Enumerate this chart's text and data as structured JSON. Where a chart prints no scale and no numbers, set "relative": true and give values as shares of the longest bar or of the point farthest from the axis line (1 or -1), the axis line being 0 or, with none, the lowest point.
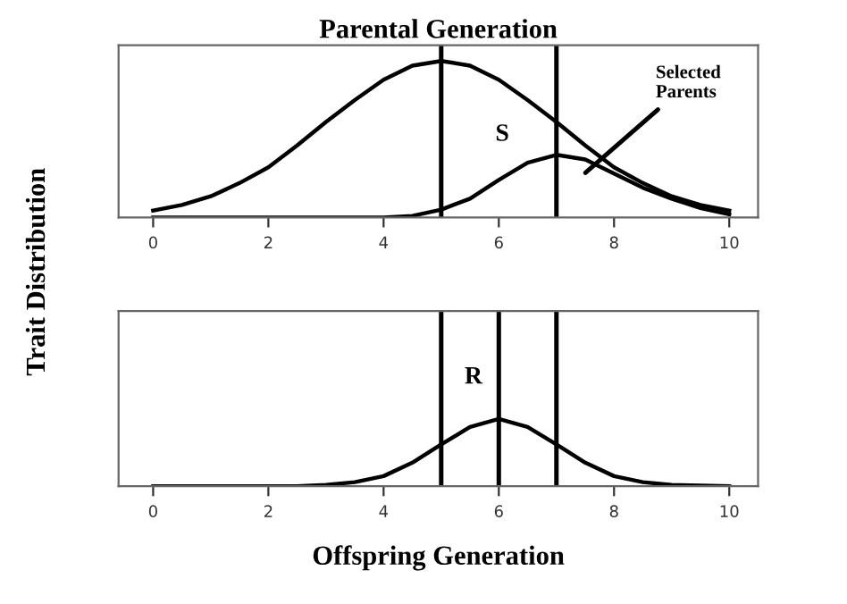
{
  "chart_data": [
    {
      "type": "line",
      "title": "Parental Generation",
      "ylabel": "Trait Distribution",
      "relative": true,
      "x": [
        0,
        0.5,
        1,
        1.5,
        2,
        2.5,
        3,
        3.5,
        4,
        4.5,
        5,
        5.5,
        6,
        6.5,
        7,
        7.5,
        8,
        8.5,
        9,
        9.5,
        10
      ],
      "series": [
        {
          "color": "#000000",
          "values": [
            0.044,
            0.08,
            0.135,
            0.22,
            0.32,
            0.46,
            0.61,
            0.75,
            0.88,
            0.97,
            1,
            0.97,
            0.88,
            0.75,
            0.61,
            0.46,
            0.32,
            0.22,
            0.135,
            0.08,
            0.044
          ]
        },
        {
          "color": "#000000",
          "values": [
            0,
            0,
            0,
            0,
            0,
            0,
            0,
            0,
            0,
            0.01,
            0.05,
            0.12,
            0.24,
            0.35,
            0.4,
            0.37,
            0.28,
            0.19,
            0.12,
            0.06,
            0.02
          ]
        }
      ],
      "xlim": [
        -0.6,
        10.5
      ],
      "xticks": [
        0,
        2,
        4,
        6,
        8,
        10
      ],
      "ref_lines": [
        {
          "axis": "x",
          "value": 5,
          "color": "#000000"
        },
        {
          "axis": "x",
          "value": 7,
          "color": "#000000"
        }
      ],
      "annotations": [
        "S",
        "Selected\nParents"
      ],
      "grid": false,
      "legend": false,
      "marker": "none",
      "line_style": "solid"
    },
    {
      "type": "line",
      "xlabel": "Offspring Generation",
      "relative": true,
      "x": [
        0,
        0.5,
        1,
        1.5,
        2,
        2.5,
        3,
        3.5,
        4,
        4.5,
        5,
        5.5,
        6,
        6.5,
        7,
        7.5,
        8,
        8.5,
        9,
        9.5,
        10
      ],
      "series": [
        {
          "color": "#000000",
          "values": [
            0,
            0,
            0,
            0,
            0,
            0,
            0.02,
            0.06,
            0.15,
            0.35,
            0.62,
            0.88,
            1,
            0.88,
            0.62,
            0.35,
            0.15,
            0.06,
            0.02,
            0.01,
            0
          ]
        }
      ],
      "xlim": [
        -0.6,
        10.5
      ],
      "xticks": [
        0,
        2,
        4,
        6,
        8,
        10
      ],
      "ref_lines": [
        {
          "axis": "x",
          "value": 5,
          "color": "#000000"
        },
        {
          "axis": "x",
          "value": 6,
          "color": "#000000"
        },
        {
          "axis": "x",
          "value": 7,
          "color": "#000000"
        }
      ],
      "annotations": [
        "R"
      ],
      "grid": false,
      "legend": false,
      "marker": "none",
      "line_style": "solid"
    }
  ]
}
